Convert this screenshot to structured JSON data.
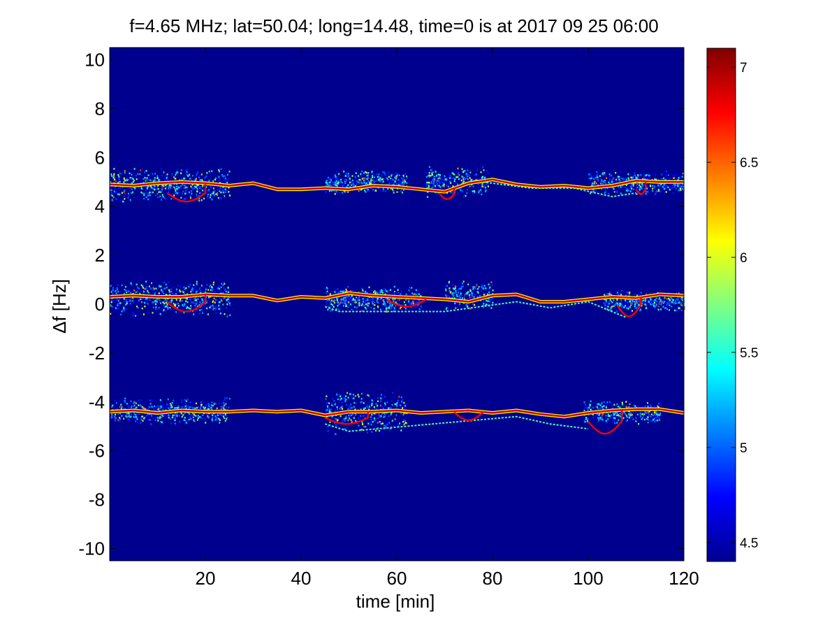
{
  "chart_data": {
    "type": "heatmap",
    "title": "f=4.65 MHz;  lat=50.04; long=14.48, time=0 is at 2017 09 25 06:00",
    "xlabel": "time [min]",
    "ylabel": "Δf [Hz]",
    "xlim": [
      0,
      120
    ],
    "ylim": [
      -10.5,
      10.5
    ],
    "x_ticks": [
      {
        "value": 20,
        "label": "20"
      },
      {
        "value": 40,
        "label": "40"
      },
      {
        "value": 60,
        "label": "60"
      },
      {
        "value": 80,
        "label": "80"
      },
      {
        "value": 100,
        "label": "100"
      },
      {
        "value": 120,
        "label": "120"
      }
    ],
    "y_ticks": [
      {
        "value": 10,
        "label": "10"
      },
      {
        "value": 8,
        "label": "8"
      },
      {
        "value": 6,
        "label": "6"
      },
      {
        "value": 4,
        "label": "4"
      },
      {
        "value": 2,
        "label": "2"
      },
      {
        "value": 0,
        "label": "0"
      },
      {
        "value": -2,
        "label": "-2"
      },
      {
        "value": -4,
        "label": "-4"
      },
      {
        "value": -6,
        "label": "-6"
      },
      {
        "value": -8,
        "label": "-8"
      },
      {
        "value": -10,
        "label": "-10"
      }
    ],
    "colorbar": {
      "colormap": "jet",
      "range": [
        4.4,
        7.1
      ],
      "ticks": [
        {
          "value": 7,
          "label": "7"
        },
        {
          "value": 6.5,
          "label": "6.5"
        },
        {
          "value": 6,
          "label": "6"
        },
        {
          "value": 5.5,
          "label": "5.5"
        },
        {
          "value": 5,
          "label": "5"
        },
        {
          "value": 4.5,
          "label": "4.5"
        }
      ]
    },
    "background_value": 4.4,
    "colors": {
      "background": "#00008f",
      "peak": "#800000"
    },
    "bands": [
      {
        "trace": [
          [
            0,
            4.9
          ],
          [
            5,
            4.85
          ],
          [
            10,
            4.95
          ],
          [
            15,
            5.0
          ],
          [
            20,
            4.95
          ],
          [
            25,
            4.85
          ],
          [
            30,
            4.95
          ],
          [
            35,
            4.7
          ],
          [
            40,
            4.7
          ],
          [
            45,
            4.75
          ],
          [
            50,
            4.7
          ],
          [
            55,
            4.85
          ],
          [
            60,
            4.8
          ],
          [
            65,
            4.7
          ],
          [
            70,
            4.6
          ],
          [
            75,
            4.95
          ],
          [
            80,
            5.1
          ],
          [
            85,
            4.9
          ],
          [
            90,
            4.8
          ],
          [
            95,
            4.85
          ],
          [
            100,
            4.75
          ],
          [
            105,
            4.85
          ],
          [
            110,
            5.05
          ],
          [
            115,
            5.0
          ],
          [
            120,
            5.0
          ]
        ],
        "loops": [
          [
            12,
            20,
            4.2,
            4.9
          ],
          [
            69,
            72,
            4.3,
            4.7
          ],
          [
            110,
            112,
            4.5,
            4.9
          ]
        ],
        "scatter_extent": [
          [
            0,
            25,
            4.2,
            5.6
          ],
          [
            45,
            62,
            4.5,
            5.5
          ],
          [
            66,
            79,
            4.4,
            5.7
          ],
          [
            100,
            120,
            4.5,
            5.5
          ]
        ],
        "weak_trace": [
          [
            78,
            5.0
          ],
          [
            88,
            4.75
          ],
          [
            97,
            4.75
          ],
          [
            105,
            4.4
          ],
          [
            110,
            4.55
          ]
        ]
      },
      {
        "trace": [
          [
            0,
            0.3
          ],
          [
            5,
            0.35
          ],
          [
            10,
            0.3
          ],
          [
            15,
            0.3
          ],
          [
            20,
            0.4
          ],
          [
            25,
            0.35
          ],
          [
            30,
            0.35
          ],
          [
            35,
            0.15
          ],
          [
            40,
            0.3
          ],
          [
            45,
            0.25
          ],
          [
            50,
            0.45
          ],
          [
            55,
            0.35
          ],
          [
            60,
            0.3
          ],
          [
            65,
            0.25
          ],
          [
            70,
            0.2
          ],
          [
            75,
            0.1
          ],
          [
            80,
            0.35
          ],
          [
            85,
            0.4
          ],
          [
            90,
            0.1
          ],
          [
            95,
            0.1
          ],
          [
            100,
            0.2
          ],
          [
            105,
            0.3
          ],
          [
            110,
            0.25
          ],
          [
            115,
            0.4
          ],
          [
            120,
            0.35
          ]
        ],
        "loops": [
          [
            12,
            20,
            -0.3,
            0.45
          ],
          [
            58,
            66,
            -0.1,
            0.45
          ],
          [
            106,
            111,
            -0.5,
            0.45
          ]
        ],
        "scatter_extent": [
          [
            0,
            25,
            -0.5,
            1.0
          ],
          [
            45,
            65,
            -0.3,
            0.8
          ],
          [
            70,
            80,
            -0.2,
            1.0
          ],
          [
            103,
            120,
            -0.3,
            0.6
          ]
        ],
        "weak_trace": [
          [
            45,
            -0.1
          ],
          [
            48,
            -0.3
          ],
          [
            70,
            -0.3
          ],
          [
            85,
            0.1
          ],
          [
            92,
            -0.15
          ],
          [
            100,
            0.1
          ],
          [
            108,
            -0.55
          ]
        ]
      },
      {
        "trace": [
          [
            0,
            -4.4
          ],
          [
            5,
            -4.35
          ],
          [
            10,
            -4.45
          ],
          [
            15,
            -4.35
          ],
          [
            20,
            -4.4
          ],
          [
            25,
            -4.4
          ],
          [
            30,
            -4.35
          ],
          [
            35,
            -4.4
          ],
          [
            40,
            -4.35
          ],
          [
            45,
            -4.55
          ],
          [
            50,
            -4.4
          ],
          [
            55,
            -4.4
          ],
          [
            60,
            -4.35
          ],
          [
            65,
            -4.45
          ],
          [
            70,
            -4.4
          ],
          [
            75,
            -4.35
          ],
          [
            80,
            -4.45
          ],
          [
            85,
            -4.35
          ],
          [
            90,
            -4.5
          ],
          [
            95,
            -4.6
          ],
          [
            100,
            -4.45
          ],
          [
            105,
            -4.35
          ],
          [
            110,
            -4.3
          ],
          [
            115,
            -4.3
          ],
          [
            120,
            -4.45
          ]
        ],
        "loops": [
          [
            45,
            54,
            -4.9,
            -4.4
          ],
          [
            72,
            78,
            -4.75,
            -4.1
          ],
          [
            100,
            107,
            -5.3,
            -4.3
          ]
        ],
        "scatter_extent": [
          [
            0,
            25,
            -4.9,
            -3.8
          ],
          [
            45,
            62,
            -5.3,
            -3.5
          ],
          [
            99,
            115,
            -4.9,
            -3.9
          ]
        ],
        "weak_trace": [
          [
            45,
            -4.9
          ],
          [
            50,
            -5.2
          ],
          [
            85,
            -4.6
          ],
          [
            92,
            -4.9
          ],
          [
            96,
            -5.0
          ],
          [
            100,
            -5.1
          ]
        ]
      }
    ]
  }
}
